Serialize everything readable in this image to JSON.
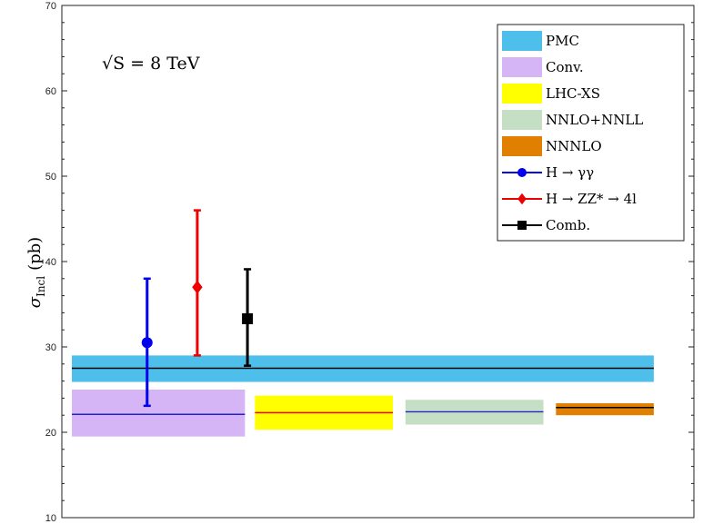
{
  "chart_data": {
    "type": "errorbar-band",
    "ylabel_main": "σ",
    "ylabel_sub": "Incl",
    "ylabel_unit": "(pb)",
    "ylim": [
      10,
      70
    ],
    "yticks": [
      10,
      20,
      30,
      40,
      50,
      60,
      70
    ],
    "annotation": "√S = 8 TeV",
    "bands": [
      {
        "name": "PMC",
        "color": "#4dbfea",
        "line_color": "#000000",
        "x": [
          0.2,
          11.8
        ],
        "low": 25.9,
        "high": 29.0,
        "central": 27.5
      },
      {
        "name": "Conv.",
        "color": "#d5b5f5",
        "line_color": "#2222cc",
        "x": [
          0.2,
          3.65
        ],
        "low": 19.5,
        "high": 25.0,
        "central": 22.1
      },
      {
        "name": "LHC-XS",
        "color": "#ffff00",
        "line_color": "#ff0000",
        "x": [
          3.85,
          6.6
        ],
        "low": 20.3,
        "high": 24.3,
        "central": 22.3
      },
      {
        "name": "NNLO+NNLL",
        "color": "#c5dfc5",
        "line_color": "#2222cc",
        "x": [
          6.85,
          9.6
        ],
        "low": 20.9,
        "high": 23.8,
        "central": 22.4
      },
      {
        "name": "NNNLO",
        "color": "#e07f00",
        "line_color": "#000000",
        "x": [
          9.85,
          11.8
        ],
        "low": 22.0,
        "high": 23.4,
        "central": 22.9
      }
    ],
    "points": [
      {
        "name": "H → γγ",
        "color": "#0000ee",
        "marker": "circle",
        "x": 1.7,
        "y": 30.5,
        "low": 23.1,
        "high": 38.0
      },
      {
        "name": "H → ZZ* → 4l",
        "color": "#ee0000",
        "marker": "diamond",
        "x": 2.7,
        "y": 37.0,
        "low": 29.0,
        "high": 46.0
      },
      {
        "name": "Comb.",
        "color": "#000000",
        "marker": "square",
        "x": 3.7,
        "y": 33.3,
        "low": 27.8,
        "high": 39.1
      }
    ],
    "legend_position": "top-right",
    "grid": false
  }
}
